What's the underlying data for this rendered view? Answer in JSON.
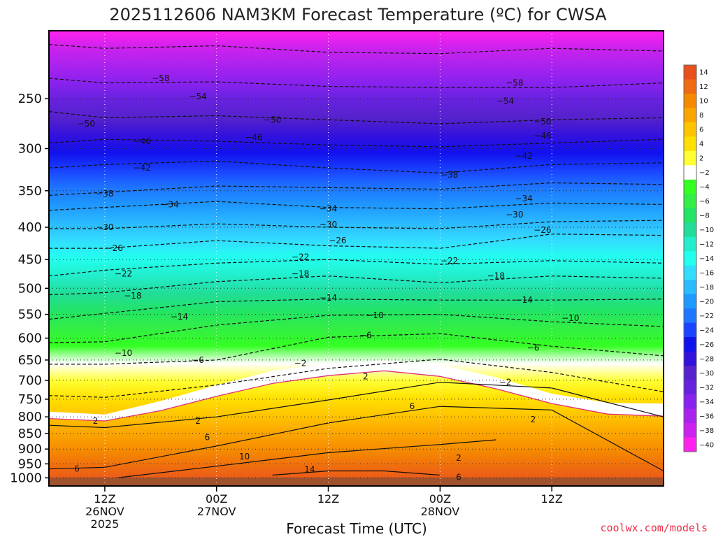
{
  "chart_data": {
    "type": "heatmap",
    "title": "2025112606 NAM3KM Forecast Temperature (ºC) for CWSA",
    "xlabel": "Forecast Time (UTC)",
    "ylabel": "",
    "credit": "coolwx.com/models",
    "y_scale": "log",
    "y_inverted": true,
    "ylim": [
      1030,
      195
    ],
    "y_ticks": [
      250,
      300,
      350,
      400,
      450,
      500,
      550,
      600,
      650,
      700,
      750,
      800,
      850,
      900,
      950,
      1000
    ],
    "y_tick_labels": [
      "250",
      "300",
      "350",
      "400",
      "450",
      "500",
      "550",
      "600",
      "650",
      "700",
      "750",
      "800",
      "850",
      "900",
      "950",
      "1000"
    ],
    "xlim": [
      "2025-11-26T06:00Z",
      "2025-11-29T00:00Z"
    ],
    "x_ticks": [
      {
        "time": "2025-11-26T12:00Z",
        "lines": [
          "12Z",
          "26NOV",
          "2025"
        ]
      },
      {
        "time": "2025-11-27T00:00Z",
        "lines": [
          "00Z",
          "27NOV"
        ]
      },
      {
        "time": "2025-11-27T12:00Z",
        "lines": [
          "12Z"
        ]
      },
      {
        "time": "2025-11-28T00:00Z",
        "lines": [
          "00Z",
          "28NOV"
        ]
      },
      {
        "time": "2025-11-28T12:00Z",
        "lines": [
          "12Z"
        ]
      }
    ],
    "grid": true,
    "legend": "right colorbar",
    "colorbar": {
      "labels": [
        "14",
        "12",
        "10",
        "8",
        "6",
        "4",
        "2",
        "−2",
        "−4",
        "−6",
        "−8",
        "−10",
        "−12",
        "−14",
        "−16",
        "−18",
        "−20",
        "−22",
        "−24",
        "−26",
        "−28",
        "−30",
        "−32",
        "−34",
        "−36",
        "−38",
        "−40"
      ],
      "colors": [
        "#e8501e",
        "#ef6a10",
        "#f58a00",
        "#fba500",
        "#ffc400",
        "#ffe000",
        "#ffff33",
        "#ffffff",
        "#33ff22",
        "#33ee44",
        "#22e466",
        "#22dd99",
        "#22eecc",
        "#22ffee",
        "#33ddff",
        "#2bbbff",
        "#1e99ff",
        "#1f77ff",
        "#1a44ff",
        "#1111ee",
        "#3311dd",
        "#5522cc",
        "#6622dd",
        "#8822ee",
        "#aa22ee",
        "#cc22ee",
        "#ff22ee"
      ]
    },
    "surface_color": "#a0522d",
    "freezing_line_color": "#e0307a",
    "freezing_band": [
      {
        "time": "2025-11-26T06:00Z",
        "p_low": 805,
        "p_high": 785
      },
      {
        "time": "2025-11-26T12:00Z",
        "p_low": 812,
        "p_high": 793
      },
      {
        "time": "2025-11-26T18:00Z",
        "p_low": 782,
        "p_high": 755
      },
      {
        "time": "2025-11-27T00:00Z",
        "p_low": 742,
        "p_high": 712
      },
      {
        "time": "2025-11-27T06:00Z",
        "p_low": 708,
        "p_high": 676
      },
      {
        "time": "2025-11-27T12:00Z",
        "p_low": 688,
        "p_high": 658
      },
      {
        "time": "2025-11-27T18:00Z",
        "p_low": 676,
        "p_high": 650
      },
      {
        "time": "2025-11-28T00:00Z",
        "p_low": 690,
        "p_high": 662
      },
      {
        "time": "2025-11-28T06:00Z",
        "p_low": 722,
        "p_high": 692
      },
      {
        "time": "2025-11-28T12:00Z",
        "p_low": 762,
        "p_high": 735
      },
      {
        "time": "2025-11-28T18:00Z",
        "p_low": 792,
        "p_high": 760
      },
      {
        "time": "2025-11-29T00:00Z",
        "p_low": 798,
        "p_high": 762
      }
    ],
    "series": [
      {
        "name": "−58",
        "values": [
          [
            0,
            205
          ],
          [
            6,
            208
          ],
          [
            18,
            206
          ],
          [
            30,
            211
          ],
          [
            42,
            212
          ],
          [
            54,
            208
          ],
          [
            66,
            210
          ]
        ]
      },
      {
        "name": "−54",
        "values": [
          [
            0,
            232
          ],
          [
            6,
            236
          ],
          [
            18,
            235
          ],
          [
            30,
            239
          ],
          [
            42,
            240
          ],
          [
            54,
            240
          ],
          [
            66,
            236
          ]
        ]
      },
      {
        "name": "−50",
        "values": [
          [
            0,
            262
          ],
          [
            6,
            268
          ],
          [
            18,
            266
          ],
          [
            30,
            270
          ],
          [
            42,
            274
          ],
          [
            54,
            270
          ],
          [
            66,
            268
          ]
        ]
      },
      {
        "name": "−46",
        "values": [
          [
            0,
            294
          ],
          [
            6,
            290
          ],
          [
            18,
            292
          ],
          [
            30,
            296
          ],
          [
            42,
            298
          ],
          [
            54,
            294
          ],
          [
            66,
            290
          ]
        ]
      },
      {
        "name": "−42",
        "values": [
          [
            0,
            322
          ],
          [
            6,
            318
          ],
          [
            18,
            314
          ],
          [
            30,
            322
          ],
          [
            42,
            328
          ],
          [
            54,
            318
          ],
          [
            66,
            316
          ]
        ]
      },
      {
        "name": "−38",
        "values": [
          [
            0,
            356
          ],
          [
            6,
            352
          ],
          [
            18,
            344
          ],
          [
            30,
            346
          ],
          [
            42,
            348
          ],
          [
            54,
            340
          ],
          [
            66,
            342
          ]
        ]
      },
      {
        "name": "−34",
        "values": [
          [
            0,
            376
          ],
          [
            6,
            372
          ],
          [
            18,
            364
          ],
          [
            30,
            372
          ],
          [
            42,
            374
          ],
          [
            54,
            366
          ],
          [
            66,
            368
          ]
        ]
      },
      {
        "name": "−30",
        "values": [
          [
            0,
            402
          ],
          [
            6,
            402
          ],
          [
            18,
            395
          ],
          [
            30,
            400
          ],
          [
            42,
            402
          ],
          [
            54,
            392
          ],
          [
            66,
            390
          ]
        ]
      },
      {
        "name": "−26",
        "values": [
          [
            0,
            432
          ],
          [
            6,
            432
          ],
          [
            18,
            420
          ],
          [
            30,
            428
          ],
          [
            42,
            432
          ],
          [
            54,
            410
          ],
          [
            66,
            412
          ]
        ]
      },
      {
        "name": "−22",
        "values": [
          [
            0,
            478
          ],
          [
            6,
            468
          ],
          [
            18,
            456
          ],
          [
            30,
            450
          ],
          [
            42,
            458
          ],
          [
            54,
            452
          ],
          [
            66,
            456
          ]
        ]
      },
      {
        "name": "−18",
        "values": [
          [
            0,
            512
          ],
          [
            6,
            508
          ],
          [
            18,
            488
          ],
          [
            30,
            478
          ],
          [
            42,
            490
          ],
          [
            54,
            478
          ],
          [
            66,
            482
          ]
        ]
      },
      {
        "name": "−14",
        "values": [
          [
            0,
            560
          ],
          [
            6,
            548
          ],
          [
            18,
            525
          ],
          [
            30,
            520
          ],
          [
            42,
            522
          ],
          [
            54,
            522
          ],
          [
            66,
            520
          ]
        ]
      },
      {
        "name": "−10",
        "values": [
          [
            0,
            610
          ],
          [
            6,
            608
          ],
          [
            18,
            572
          ],
          [
            30,
            552
          ],
          [
            42,
            550
          ],
          [
            54,
            565
          ],
          [
            66,
            575
          ]
        ]
      },
      {
        "name": "−6",
        "values": [
          [
            0,
            660
          ],
          [
            6,
            660
          ],
          [
            18,
            650
          ],
          [
            30,
            598
          ],
          [
            42,
            590
          ],
          [
            54,
            618
          ],
          [
            66,
            640
          ]
        ]
      },
      {
        "name": "−2",
        "values": [
          [
            0,
            740
          ],
          [
            6,
            745
          ],
          [
            18,
            712
          ],
          [
            30,
            670
          ],
          [
            42,
            648
          ],
          [
            54,
            680
          ],
          [
            66,
            730
          ]
        ]
      },
      {
        "name": "2",
        "values": [
          [
            0,
            825
          ],
          [
            6,
            832
          ],
          [
            18,
            800
          ],
          [
            30,
            752
          ],
          [
            42,
            705
          ],
          [
            54,
            720
          ],
          [
            66,
            800
          ]
        ]
      },
      {
        "name": "6",
        "values": [
          [
            0,
            968
          ],
          [
            6,
            962
          ],
          [
            18,
            890
          ],
          [
            30,
            818
          ],
          [
            42,
            770
          ],
          [
            54,
            780
          ],
          [
            66,
            975
          ]
        ]
      },
      {
        "name": "10",
        "values": [
          [
            6,
            1005
          ],
          [
            18,
            958
          ],
          [
            30,
            912
          ],
          [
            42,
            885
          ],
          [
            48,
            870
          ]
        ]
      },
      {
        "name": "14",
        "values": [
          [
            24,
            990
          ],
          [
            30,
            975
          ],
          [
            36,
            975
          ],
          [
            42,
            990
          ]
        ]
      }
    ],
    "contour_labels": [
      {
        "text": "−58",
        "time": "2025-11-26T18:00Z",
        "p": 232
      },
      {
        "text": "−58",
        "time": "2025-11-28T08:00Z",
        "p": 236
      },
      {
        "text": "−54",
        "time": "2025-11-26T22:00Z",
        "p": 248
      },
      {
        "text": "−54",
        "time": "2025-11-28T07:00Z",
        "p": 252
      },
      {
        "text": "−50",
        "time": "2025-11-26T10:00Z",
        "p": 274
      },
      {
        "text": "−50",
        "time": "2025-11-27T06:00Z",
        "p": 270
      },
      {
        "text": "−50",
        "time": "2025-11-28T11:00Z",
        "p": 272
      },
      {
        "text": "−46",
        "time": "2025-11-26T16:00Z",
        "p": 292
      },
      {
        "text": "−46",
        "time": "2025-11-27T04:00Z",
        "p": 288
      },
      {
        "text": "−46",
        "time": "2025-11-28T11:00Z",
        "p": 286
      },
      {
        "text": "−42",
        "time": "2025-11-26T16:00Z",
        "p": 322
      },
      {
        "text": "−42",
        "time": "2025-11-28T09:00Z",
        "p": 308
      },
      {
        "text": "−38",
        "time": "2025-11-26T12:00Z",
        "p": 354
      },
      {
        "text": "−38",
        "time": "2025-11-28T01:00Z",
        "p": 330
      },
      {
        "text": "−34",
        "time": "2025-11-26T19:00Z",
        "p": 368
      },
      {
        "text": "−34",
        "time": "2025-11-27T12:00Z",
        "p": 374
      },
      {
        "text": "−34",
        "time": "2025-11-28T09:00Z",
        "p": 360
      },
      {
        "text": "−30",
        "time": "2025-11-26T12:00Z",
        "p": 400
      },
      {
        "text": "−30",
        "time": "2025-11-27T12:00Z",
        "p": 396
      },
      {
        "text": "−30",
        "time": "2025-11-28T08:00Z",
        "p": 382
      },
      {
        "text": "−26",
        "time": "2025-11-26T13:00Z",
        "p": 432
      },
      {
        "text": "−26",
        "time": "2025-11-27T13:00Z",
        "p": 420
      },
      {
        "text": "−26",
        "time": "2025-11-28T11:00Z",
        "p": 404
      },
      {
        "text": "−22",
        "time": "2025-11-26T14:00Z",
        "p": 474
      },
      {
        "text": "−22",
        "time": "2025-11-27T09:00Z",
        "p": 446
      },
      {
        "text": "−22",
        "time": "2025-11-28T01:00Z",
        "p": 452
      },
      {
        "text": "−18",
        "time": "2025-11-26T15:00Z",
        "p": 514
      },
      {
        "text": "−18",
        "time": "2025-11-27T09:00Z",
        "p": 474
      },
      {
        "text": "−18",
        "time": "2025-11-28T06:00Z",
        "p": 478
      },
      {
        "text": "−14",
        "time": "2025-11-26T20:00Z",
        "p": 555
      },
      {
        "text": "−14",
        "time": "2025-11-27T12:00Z",
        "p": 518
      },
      {
        "text": "−14",
        "time": "2025-11-28T09:00Z",
        "p": 522
      },
      {
        "text": "−10",
        "time": "2025-11-26T14:00Z",
        "p": 634
      },
      {
        "text": "−10",
        "time": "2025-11-27T17:00Z",
        "p": 552
      },
      {
        "text": "−10",
        "time": "2025-11-28T14:00Z",
        "p": 558
      },
      {
        "text": "−6",
        "time": "2025-11-26T22:00Z",
        "p": 650
      },
      {
        "text": "−6",
        "time": "2025-11-27T16:00Z",
        "p": 594
      },
      {
        "text": "−6",
        "time": "2025-11-28T10:00Z",
        "p": 622
      },
      {
        "text": "−2",
        "time": "2025-11-27T09:00Z",
        "p": 658
      },
      {
        "text": "−2",
        "time": "2025-11-28T07:00Z",
        "p": 705
      },
      {
        "text": "2",
        "time": "2025-11-26T11:00Z",
        "p": 812
      },
      {
        "text": "2",
        "time": "2025-11-26T22:00Z",
        "p": 812
      },
      {
        "text": "2",
        "time": "2025-11-27T16:00Z",
        "p": 690
      },
      {
        "text": "2",
        "time": "2025-11-28T10:00Z",
        "p": 808
      },
      {
        "text": "2",
        "time": "2025-11-28T02:00Z",
        "p": 930
      },
      {
        "text": "6",
        "time": "2025-11-26T09:00Z",
        "p": 968
      },
      {
        "text": "6",
        "time": "2025-11-26T23:00Z",
        "p": 862
      },
      {
        "text": "6",
        "time": "2025-11-27T21:00Z",
        "p": 770
      },
      {
        "text": "6",
        "time": "2025-11-28T02:00Z",
        "p": 998
      },
      {
        "text": "10",
        "time": "2025-11-27T03:00Z",
        "p": 925
      },
      {
        "text": "14",
        "time": "2025-11-27T10:00Z",
        "p": 970
      }
    ]
  }
}
